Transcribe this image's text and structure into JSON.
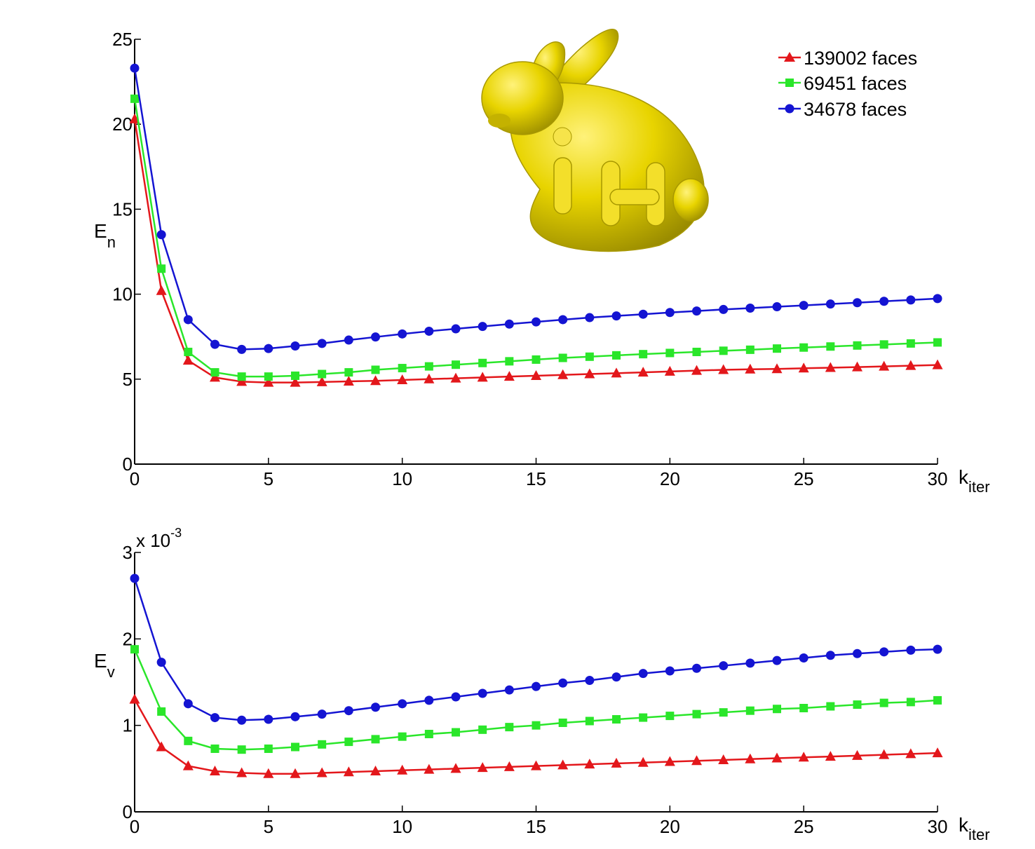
{
  "colors": {
    "red": "#e3171b",
    "green": "#2ae62a",
    "blue": "#1414d2"
  },
  "legend": [
    {
      "label": "139002 faces",
      "color": "#e3171b",
      "marker": "triangle"
    },
    {
      "label": "69451 faces",
      "color": "#2ae62a",
      "marker": "square"
    },
    {
      "label": "34678 faces",
      "color": "#1414d2",
      "marker": "circle"
    }
  ],
  "inset_image": {
    "subject": "yellow-bunny-model-icon"
  },
  "chart_data": [
    {
      "type": "line",
      "ylabel": "E",
      "ylabel_sub": "n",
      "xlabel": "k",
      "xlabel_sub": "iter",
      "xlim": [
        0,
        30
      ],
      "ylim": [
        0,
        25
      ],
      "xticks": [
        "0",
        "5",
        "10",
        "15",
        "20",
        "25",
        "30"
      ],
      "yticks": [
        "0",
        "5",
        "10",
        "15",
        "20",
        "25"
      ],
      "multiplier": "",
      "multiplier_exp": "",
      "x": [
        0,
        1,
        2,
        3,
        4,
        5,
        6,
        7,
        8,
        9,
        10,
        11,
        12,
        13,
        14,
        15,
        16,
        17,
        18,
        19,
        20,
        21,
        22,
        23,
        24,
        25,
        26,
        27,
        28,
        29,
        30
      ],
      "series": [
        {
          "name": "139002 faces",
          "color": "#e3171b",
          "marker": "triangle",
          "values": [
            20.3,
            10.2,
            6.1,
            5.1,
            4.85,
            4.8,
            4.8,
            4.83,
            4.87,
            4.9,
            4.95,
            5.0,
            5.05,
            5.1,
            5.15,
            5.2,
            5.25,
            5.3,
            5.35,
            5.4,
            5.45,
            5.5,
            5.55,
            5.58,
            5.6,
            5.64,
            5.67,
            5.71,
            5.75,
            5.79,
            5.83
          ]
        },
        {
          "name": "69451 faces",
          "color": "#2ae62a",
          "marker": "square",
          "values": [
            21.5,
            11.5,
            6.6,
            5.4,
            5.15,
            5.15,
            5.2,
            5.3,
            5.4,
            5.55,
            5.65,
            5.75,
            5.85,
            5.95,
            6.05,
            6.15,
            6.25,
            6.32,
            6.4,
            6.47,
            6.54,
            6.6,
            6.67,
            6.73,
            6.8,
            6.86,
            6.92,
            6.98,
            7.04,
            7.1,
            7.16
          ]
        },
        {
          "name": "34678 faces",
          "color": "#1414d2",
          "marker": "circle",
          "values": [
            23.3,
            13.5,
            8.5,
            7.05,
            6.75,
            6.8,
            6.95,
            7.1,
            7.3,
            7.48,
            7.66,
            7.82,
            7.96,
            8.1,
            8.24,
            8.37,
            8.5,
            8.62,
            8.72,
            8.82,
            8.92,
            9.01,
            9.1,
            9.18,
            9.26,
            9.34,
            9.42,
            9.5,
            9.58,
            9.66,
            9.74
          ]
        }
      ]
    },
    {
      "type": "line",
      "ylabel": "E",
      "ylabel_sub": "v",
      "xlabel": "k",
      "xlabel_sub": "iter",
      "xlim": [
        0,
        30
      ],
      "ylim": [
        0,
        3
      ],
      "xticks": [
        "0",
        "5",
        "10",
        "15",
        "20",
        "25",
        "30"
      ],
      "yticks": [
        "0",
        "1",
        "2",
        "3"
      ],
      "multiplier": "x 10",
      "multiplier_exp": "-3",
      "x": [
        0,
        1,
        2,
        3,
        4,
        5,
        6,
        7,
        8,
        9,
        10,
        11,
        12,
        13,
        14,
        15,
        16,
        17,
        18,
        19,
        20,
        21,
        22,
        23,
        24,
        25,
        26,
        27,
        28,
        29,
        30
      ],
      "series": [
        {
          "name": "139002 faces",
          "color": "#e3171b",
          "marker": "triangle",
          "values": [
            1.3,
            0.75,
            0.53,
            0.47,
            0.45,
            0.44,
            0.44,
            0.45,
            0.46,
            0.47,
            0.48,
            0.49,
            0.5,
            0.51,
            0.52,
            0.53,
            0.54,
            0.55,
            0.56,
            0.57,
            0.58,
            0.59,
            0.6,
            0.61,
            0.62,
            0.63,
            0.64,
            0.65,
            0.66,
            0.67,
            0.68
          ]
        },
        {
          "name": "69451 faces",
          "color": "#2ae62a",
          "marker": "square",
          "values": [
            1.88,
            1.16,
            0.82,
            0.73,
            0.72,
            0.73,
            0.75,
            0.78,
            0.81,
            0.84,
            0.87,
            0.9,
            0.92,
            0.95,
            0.98,
            1.0,
            1.03,
            1.05,
            1.07,
            1.09,
            1.11,
            1.13,
            1.15,
            1.17,
            1.19,
            1.2,
            1.22,
            1.24,
            1.26,
            1.27,
            1.29
          ]
        },
        {
          "name": "34678 faces",
          "color": "#1414d2",
          "marker": "circle",
          "values": [
            2.7,
            1.73,
            1.25,
            1.09,
            1.06,
            1.07,
            1.1,
            1.13,
            1.17,
            1.21,
            1.25,
            1.29,
            1.33,
            1.37,
            1.41,
            1.45,
            1.49,
            1.52,
            1.56,
            1.6,
            1.63,
            1.66,
            1.69,
            1.72,
            1.75,
            1.78,
            1.81,
            1.83,
            1.85,
            1.87,
            1.88
          ]
        }
      ]
    }
  ]
}
